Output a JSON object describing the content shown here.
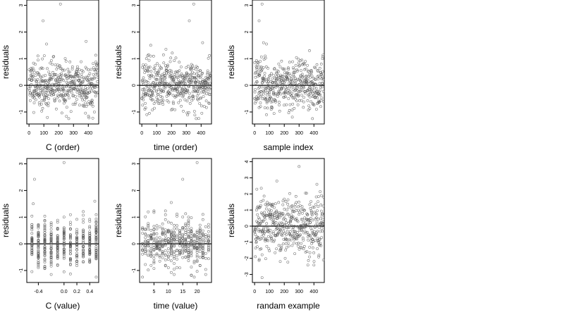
{
  "chart_data": [
    {
      "type": "scatter",
      "xlabel": "C (order)",
      "ylabel": "residuals",
      "xlim": [
        -15,
        470
      ],
      "ylim": [
        -1.45,
        3.2
      ],
      "xticks": [
        0,
        100,
        200,
        300,
        400
      ],
      "yticks": [
        -1,
        0,
        1,
        2,
        3
      ],
      "tick_labels_x": [
        "0",
        "100",
        "200",
        "300",
        "400"
      ],
      "tick_labels_y": [
        "-1",
        "0",
        "1",
        "2",
        "3"
      ],
      "hline": 0,
      "n_points": 468,
      "seed": 11,
      "mode": "index",
      "outliers": [
        [
          212,
          3.05
        ],
        [
          95,
          2.42
        ],
        [
          118,
          1.55
        ],
        [
          385,
          1.65
        ]
      ]
    },
    {
      "type": "scatter",
      "xlabel": "time (order)",
      "ylabel": "residuals",
      "xlim": [
        -15,
        470
      ],
      "ylim": [
        -1.45,
        3.2
      ],
      "xticks": [
        0,
        100,
        200,
        300,
        400
      ],
      "yticks": [
        -1,
        0,
        1,
        2,
        3
      ],
      "tick_labels_x": [
        "0",
        "100",
        "200",
        "300",
        "400"
      ],
      "tick_labels_y": [
        "-1",
        "0",
        "1",
        "2",
        "3"
      ],
      "hline": 0,
      "n_points": 468,
      "seed": 23,
      "mode": "index",
      "outliers": [
        [
          350,
          3.05
        ],
        [
          320,
          2.42
        ],
        [
          60,
          1.5
        ],
        [
          410,
          1.6
        ]
      ]
    },
    {
      "type": "scatter",
      "xlabel": "sample index",
      "ylabel": "residuals",
      "xlim": [
        -15,
        470
      ],
      "ylim": [
        -1.45,
        3.2
      ],
      "xticks": [
        0,
        100,
        200,
        300,
        400
      ],
      "yticks": [
        -1,
        0,
        1,
        2,
        3
      ],
      "tick_labels_x": [
        "0",
        "100",
        "200",
        "300",
        "400"
      ],
      "tick_labels_y": [
        "-1",
        "0",
        "1",
        "2",
        "3"
      ],
      "hline": 0,
      "n_points": 468,
      "seed": 37,
      "mode": "index",
      "outliers": [
        [
          50,
          3.05
        ],
        [
          30,
          2.42
        ],
        [
          60,
          1.6
        ],
        [
          80,
          1.55
        ],
        [
          370,
          1.3
        ]
      ]
    },
    {
      "type": "scatter",
      "xlabel": "C (value)",
      "ylabel": "residuals",
      "xlim": [
        -0.58,
        0.54
      ],
      "ylim": [
        -1.45,
        3.2
      ],
      "xticks": [
        -0.4,
        0.0,
        0.2,
        0.4
      ],
      "yticks": [
        -1,
        0,
        1,
        2,
        3
      ],
      "tick_labels_x": [
        "-0.4",
        "0.0",
        "0.2",
        "0.4"
      ],
      "tick_labels_y": [
        "-1",
        "0",
        "1",
        "2",
        "3"
      ],
      "hline": 0,
      "n_points": 468,
      "seed": 41,
      "mode": "columns",
      "x_values": [
        -0.5,
        -0.4,
        -0.3,
        -0.2,
        -0.1,
        0.0,
        0.1,
        0.2,
        0.3,
        0.4,
        0.5
      ],
      "outliers": [
        [
          0.0,
          3.05
        ],
        [
          -0.46,
          2.42
        ],
        [
          -0.48,
          1.5
        ],
        [
          0.48,
          1.6
        ]
      ]
    },
    {
      "type": "scatter",
      "xlabel": "time (value)",
      "ylabel": "residuals",
      "xlim": [
        0,
        25
      ],
      "ylim": [
        -1.45,
        3.2
      ],
      "xticks": [
        5,
        10,
        15,
        20
      ],
      "yticks": [
        -1,
        0,
        1,
        2,
        3
      ],
      "tick_labels_x": [
        "5",
        "10",
        "15",
        "20"
      ],
      "tick_labels_y": [
        "-1",
        "0",
        "1",
        "2",
        "3"
      ],
      "hline": 0,
      "n_points": 468,
      "seed": 53,
      "mode": "columns",
      "x_values": [
        1,
        2,
        3,
        4,
        5,
        6,
        7,
        8,
        9,
        10,
        11,
        12,
        13,
        14,
        15,
        16,
        17,
        18,
        19,
        20,
        21,
        22,
        23,
        24
      ],
      "outliers": [
        [
          20,
          3.05
        ],
        [
          15,
          2.42
        ],
        [
          11,
          1.55
        ],
        [
          3,
          1.2
        ]
      ]
    },
    {
      "type": "scatter",
      "xlabel": "randam example",
      "ylabel": "residuals",
      "xlim": [
        -15,
        470
      ],
      "ylim": [
        -3.5,
        4.2
      ],
      "xticks": [
        0,
        100,
        200,
        300,
        400
      ],
      "yticks": [
        -3,
        -2,
        -1,
        0,
        1,
        2,
        3,
        4
      ],
      "tick_labels_x": [
        "0",
        "100",
        "200",
        "300",
        "400"
      ],
      "tick_labels_y": [
        "-3",
        "-2",
        "-1",
        "0",
        "1",
        "2",
        "3",
        "4"
      ],
      "hline": 0,
      "n_points": 468,
      "seed": 71,
      "mode": "random",
      "outliers": [
        [
          300,
          3.7
        ],
        [
          150,
          2.8
        ],
        [
          50,
          -3.2
        ],
        [
          420,
          2.6
        ]
      ]
    }
  ],
  "colors": {
    "point": "#555555",
    "axis": "#000000",
    "hline": "#000000",
    "background": "#ffffff"
  }
}
